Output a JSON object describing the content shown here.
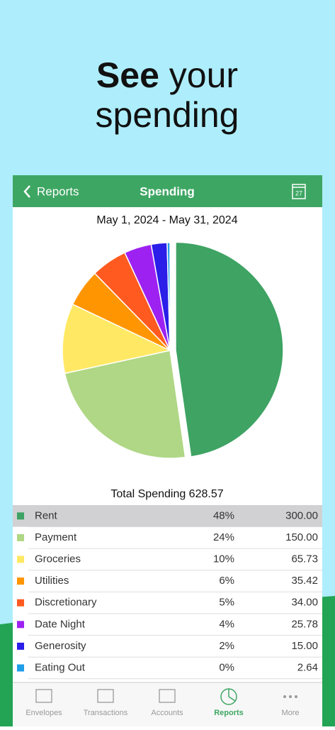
{
  "headline": [
    "See",
    "your",
    "spending"
  ],
  "nav": {
    "back": "Reports",
    "title": "Spending",
    "calendar_day": "27"
  },
  "chart_data": {
    "type": "pie",
    "subtitle": "May 1, 2024 - May 31, 2024",
    "title": "Total Spending 628.57",
    "categories": [
      "Rent",
      "Payment",
      "Groceries",
      "Utilities",
      "Discretionary",
      "Date Night",
      "Generosity",
      "Eating Out"
    ],
    "values": [
      300,
      150,
      65.73,
      35.42,
      34,
      25.78,
      15,
      2.64
    ],
    "value_labels": [
      "300.00",
      "150.00",
      "65.73",
      "35.42",
      "34.00",
      "25.78",
      "15.00",
      "2.64"
    ],
    "percent_labels": [
      "48%",
      "24%",
      "10%",
      "6%",
      "5%",
      "4%",
      "2%",
      "0%"
    ],
    "colors": [
      "#3ea363",
      "#afd785",
      "#ffe964",
      "#ff9500",
      "#ff5a1f",
      "#9d22f2",
      "#2a1ee8",
      "#1f9ee8"
    ]
  },
  "tabs": [
    "Envelopes",
    "Transactions",
    "Accounts",
    "Reports",
    "More"
  ]
}
